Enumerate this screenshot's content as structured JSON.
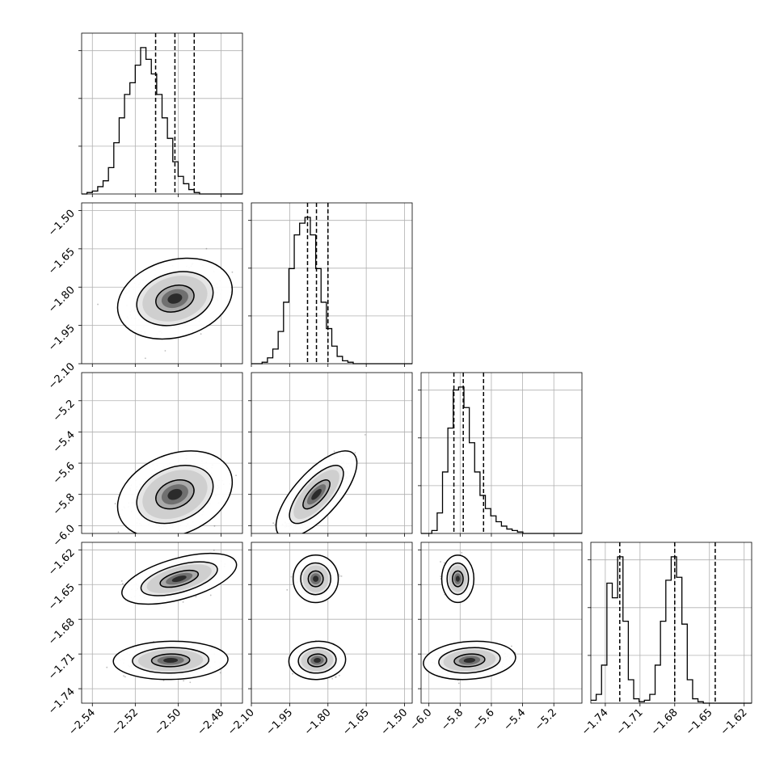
{
  "chart_data": {
    "type": "corner",
    "grid": true,
    "parameters": [
      {
        "range": [
          -2.545,
          -2.47
        ],
        "ticks": [
          -2.54,
          -2.52,
          -2.5,
          -2.48
        ],
        "tick_labels": [
          "−2.54",
          "−2.52",
          "−2.50",
          "−2.48"
        ],
        "hist": {
          "edges_start": -2.545,
          "edges_step": 0.0025,
          "counts": [
            0,
            1,
            2,
            5,
            9,
            18,
            35,
            52,
            68,
            76,
            88,
            100,
            92,
            82,
            68,
            52,
            38,
            22,
            12,
            7,
            3,
            1,
            0,
            0,
            0,
            0,
            0,
            0,
            0,
            0
          ]
        },
        "quantiles": [
          -2.5105,
          -2.5015,
          -2.4925
        ]
      },
      {
        "range": [
          -2.1,
          -1.47
        ],
        "ticks": [
          -2.1,
          -1.95,
          -1.8,
          -1.65,
          -1.5
        ],
        "tick_labels": [
          "−2.10",
          "−1.95",
          "−1.80",
          "−1.65",
          "−1.50"
        ],
        "hist": {
          "edges_start": -2.1,
          "edges_step": 0.021,
          "counts": [
            0,
            0,
            1,
            4,
            10,
            22,
            42,
            65,
            88,
            96,
            100,
            88,
            65,
            42,
            24,
            12,
            5,
            2,
            1,
            0,
            0,
            0,
            0,
            0,
            0,
            0,
            0,
            0,
            0,
            0
          ]
        },
        "quantiles": [
          -1.88,
          -1.845,
          -1.8
        ]
      },
      {
        "range": [
          -6.05,
          -5.02
        ],
        "ticks": [
          -6.0,
          -5.8,
          -5.6,
          -5.4,
          -5.2
        ],
        "tick_labels": [
          "−6.0",
          "−5.8",
          "−5.6",
          "−5.4",
          "−5.2"
        ],
        "hist": {
          "edges_start": -6.05,
          "edges_step": 0.0343,
          "counts": [
            0,
            0,
            2,
            14,
            42,
            72,
            98,
            100,
            86,
            62,
            42,
            26,
            17,
            12,
            8,
            5,
            3,
            2,
            1,
            0,
            0,
            0,
            0,
            0,
            0,
            0,
            0,
            0,
            0,
            0
          ]
        },
        "quantiles": [
          -5.84,
          -5.78,
          -5.65
        ]
      },
      {
        "range": [
          -1.7525,
          -1.6135
        ],
        "ticks": [
          -1.74,
          -1.71,
          -1.68,
          -1.65,
          -1.62
        ],
        "tick_labels": [
          "−1.74",
          "−1.71",
          "−1.68",
          "−1.65",
          "−1.62"
        ],
        "hist": {
          "edges_start": -1.7525,
          "edges_step": 0.00463,
          "counts": [
            2,
            6,
            26,
            82,
            72,
            100,
            56,
            16,
            3,
            1,
            2,
            6,
            26,
            56,
            84,
            100,
            86,
            54,
            16,
            3,
            1,
            0,
            0,
            0,
            0,
            0,
            0,
            0,
            0,
            0
          ]
        },
        "quantiles": [
          -1.7275,
          -1.68,
          -1.645
        ]
      }
    ],
    "clusters": [
      [
        {
          "x": -2.5015,
          "y": -1.845,
          "sx": 0.0089,
          "sy": 0.0527,
          "rho": 0.22,
          "w": 1
        }
      ],
      [
        {
          "x": -2.5015,
          "y": -5.8,
          "sx": 0.0089,
          "sy": 0.0927,
          "rho": 0.28,
          "w": 1
        },
        {
          "x": -1.845,
          "y": -5.8,
          "sx": 0.0527,
          "sy": 0.0927,
          "rho": 0.72,
          "w": 1
        }
      ],
      [
        {
          "x": -2.4995,
          "y": -1.645,
          "sx": 0.0089,
          "sy": 0.0073,
          "rho": 0.55,
          "w": 0.55
        },
        {
          "x": -2.5035,
          "y": -1.7155,
          "sx": 0.0089,
          "sy": 0.0055,
          "rho": 0.05,
          "w": 0.45
        },
        {
          "x": -1.848,
          "y": -1.645,
          "sx": 0.031,
          "sy": 0.0065,
          "rho": 0.0,
          "w": 0.55
        },
        {
          "x": -1.842,
          "y": -1.7155,
          "sx": 0.037,
          "sy": 0.0055,
          "rho": 0.05,
          "w": 0.45
        },
        {
          "x": -5.815,
          "y": -1.645,
          "sx": 0.0343,
          "sy": 0.0068,
          "rho": 0.0,
          "w": 0.55
        },
        {
          "x": -5.74,
          "y": -1.7155,
          "sx": 0.0983,
          "sy": 0.0055,
          "rho": 0.15,
          "w": 0.45
        }
      ]
    ]
  }
}
